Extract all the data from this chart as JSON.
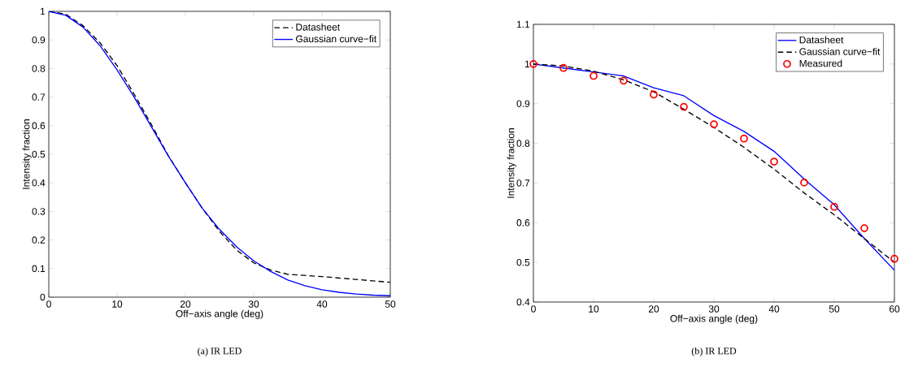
{
  "chart_data": [
    {
      "type": "line",
      "xlabel": "Off−axis angle (deg)",
      "ylabel": "Intensity fraction",
      "xlim": [
        0,
        50
      ],
      "ylim": [
        0,
        1
      ],
      "xticks": [
        0,
        10,
        20,
        30,
        40,
        50
      ],
      "yticks": [
        0,
        0.1,
        0.2,
        0.3,
        0.4,
        0.5,
        0.6,
        0.7,
        0.8,
        0.9,
        1
      ],
      "legend": "top right",
      "annotations": [
        "(a) IR LED"
      ],
      "series": [
        {
          "name": "Datasheet",
          "color": "#000000",
          "line_style": "dashed",
          "x": [
            0,
            2.5,
            5,
            7.5,
            10,
            12.5,
            15,
            17.5,
            20,
            22.5,
            25,
            27.5,
            30,
            32.5,
            35,
            40,
            45,
            50
          ],
          "values": [
            1,
            0.99,
            0.95,
            0.89,
            0.81,
            0.71,
            0.605,
            0.495,
            0.4,
            0.31,
            0.23,
            0.165,
            0.12,
            0.095,
            0.08,
            0.072,
            0.062,
            0.052
          ]
        },
        {
          "name": "Gaussian curve−fit",
          "color": "#0000ff",
          "line_style": "solid",
          "x": [
            0,
            2.5,
            5,
            7.5,
            10,
            12.5,
            15,
            17.5,
            20,
            22.5,
            25,
            27.5,
            30,
            32.5,
            35,
            37.5,
            40,
            42.5,
            45,
            47.5,
            50
          ],
          "values": [
            1,
            0.986,
            0.945,
            0.88,
            0.795,
            0.7,
            0.597,
            0.494,
            0.4,
            0.31,
            0.237,
            0.176,
            0.127,
            0.09,
            0.06,
            0.04,
            0.026,
            0.017,
            0.011,
            0.007,
            0.005
          ]
        }
      ]
    },
    {
      "type": "line",
      "xlabel": "Off−axis angle (deg)",
      "ylabel": "Intensity fraction",
      "xlim": [
        0,
        60
      ],
      "ylim": [
        0.4,
        1.1
      ],
      "xticks": [
        0,
        10,
        20,
        30,
        40,
        50,
        60
      ],
      "yticks": [
        0.4,
        0.5,
        0.6,
        0.7,
        0.8,
        0.9,
        1,
        1.1
      ],
      "legend": "top right",
      "annotations": [
        "(b) IR LED"
      ],
      "series": [
        {
          "name": "Datasheet",
          "color": "#0000ff",
          "line_style": "solid",
          "x": [
            0,
            5,
            10,
            15,
            20,
            25,
            30,
            35,
            40,
            45,
            50,
            55,
            60
          ],
          "values": [
            1,
            0.99,
            0.98,
            0.97,
            0.94,
            0.92,
            0.87,
            0.83,
            0.78,
            0.71,
            0.645,
            0.56,
            0.48
          ]
        },
        {
          "name": "Gaussian curve−fit",
          "color": "#000000",
          "line_style": "dashed",
          "x": [
            0,
            5,
            10,
            15,
            20,
            25,
            30,
            35,
            40,
            45,
            50,
            55,
            60
          ],
          "values": [
            1,
            0.995,
            0.982,
            0.96,
            0.93,
            0.886,
            0.84,
            0.79,
            0.735,
            0.675,
            0.62,
            0.56,
            0.5
          ]
        },
        {
          "name": "Measured",
          "type": "scatter",
          "marker": "circle",
          "color": "#ff0000",
          "x": [
            0,
            5,
            10,
            15,
            20,
            25,
            30,
            35,
            40,
            45,
            50,
            55,
            60
          ],
          "values": [
            1,
            0.99,
            0.97,
            0.958,
            0.923,
            0.892,
            0.848,
            0.812,
            0.754,
            0.701,
            0.64,
            0.586,
            0.509
          ]
        }
      ]
    }
  ]
}
